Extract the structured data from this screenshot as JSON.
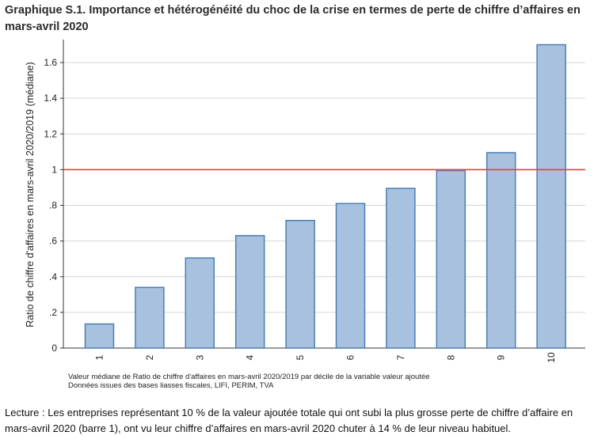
{
  "title": "Graphique S.1. Importance et hétérogénéité du choc de la crise en termes de perte de chiffre d’affaires en mars-avril 2020",
  "notes": [
    "Valeur médiane de Ratio de chiffre d'affaires en mars-avril 2020/2019 par décile de la variable valeur ajoutée",
    "Données issues des bases liasses fiscales, LIFI, PERIM, TVA"
  ],
  "lecture": "Lecture : Les entreprises représentant 10 % de la valeur ajoutée totale qui ont subi la plus grosse perte de chiffre d’affaire en mars-avril 2020 (barre 1), ont vu leur chiffre d’affaires en mars-avril 2020 chuter à 14 % de leur niveau habituel.",
  "chart_data": {
    "type": "bar",
    "categories": [
      "1",
      "2",
      "3",
      "4",
      "5",
      "6",
      "7",
      "8",
      "9",
      "10"
    ],
    "values": [
      0.135,
      0.34,
      0.505,
      0.63,
      0.715,
      0.81,
      0.895,
      0.995,
      1.095,
      1.7
    ],
    "ylabel": "Ratio de chiffre d'affaires en mars-avril 2020/2019 (médiane)",
    "ylim": [
      0,
      1.72
    ],
    "yticks": [
      0,
      0.2,
      0.4,
      0.6,
      0.8,
      1,
      1.2,
      1.4,
      1.6
    ],
    "ytick_labels": [
      "0",
      ".2",
      ".4",
      ".6",
      ".8",
      "1",
      "1.2",
      "1.4",
      "1.6"
    ],
    "reference_line": 1,
    "grid": true,
    "colors": {
      "bar_fill": "#a7c1de",
      "bar_stroke": "#4a7fb2",
      "reference_line": "#e8413a",
      "grid": "#d6d6d6"
    }
  }
}
